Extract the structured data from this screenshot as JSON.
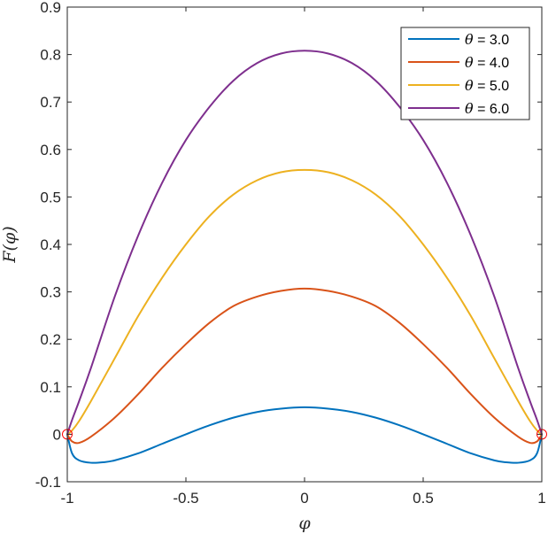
{
  "chart_data": {
    "type": "line",
    "xlabel": "φ",
    "ylabel": "F(φ)",
    "xlim": [
      -1,
      1
    ],
    "ylim": [
      -0.1,
      0.9
    ],
    "xticks": [
      -1,
      -0.5,
      0,
      0.5,
      1
    ],
    "xtick_labels": [
      "-1",
      "-0.5",
      "0",
      "0.5",
      "1"
    ],
    "yticks": [
      -0.1,
      0,
      0.1,
      0.2,
      0.3,
      0.4,
      0.5,
      0.6,
      0.7,
      0.8,
      0.9
    ],
    "ytick_labels": [
      "-0.1",
      "0",
      "0.1",
      "0.2",
      "0.3",
      "0.4",
      "0.5",
      "0.6",
      "0.7",
      "0.8",
      "0.9"
    ],
    "grid": false,
    "legend_position": "top-right",
    "series": [
      {
        "name": "θ = 3.0",
        "theta_symbol": "θ",
        "theta_value": "= 3.0",
        "color": "#0072BD",
        "x": [
          -1,
          -0.98,
          -0.95,
          -0.9,
          -0.85,
          -0.8,
          -0.7,
          -0.6,
          -0.5,
          -0.4,
          -0.3,
          -0.2,
          -0.1,
          0,
          0.1,
          0.2,
          0.3,
          0.4,
          0.5,
          0.6,
          0.7,
          0.8,
          0.85,
          0.9,
          0.95,
          0.98,
          1
        ],
        "y": [
          0,
          -0.04,
          -0.055,
          -0.06,
          -0.059,
          -0.055,
          -0.04,
          -0.02,
          0,
          0.019,
          0.035,
          0.047,
          0.054,
          0.057,
          0.054,
          0.047,
          0.035,
          0.019,
          0,
          -0.02,
          -0.04,
          -0.055,
          -0.059,
          -0.06,
          -0.055,
          -0.04,
          0
        ]
      },
      {
        "name": "θ = 4.0",
        "theta_symbol": "θ",
        "theta_value": "= 4.0",
        "color": "#D95319",
        "x": [
          -1,
          -0.98,
          -0.95,
          -0.9,
          -0.8,
          -0.7,
          -0.6,
          -0.5,
          -0.4,
          -0.3,
          -0.2,
          -0.1,
          0,
          0.1,
          0.2,
          0.3,
          0.4,
          0.5,
          0.6,
          0.7,
          0.8,
          0.9,
          0.95,
          0.98,
          1
        ],
        "y": [
          0,
          -0.015,
          -0.018,
          -0.005,
          0.035,
          0.085,
          0.14,
          0.19,
          0.235,
          0.27,
          0.29,
          0.302,
          0.307,
          0.302,
          0.29,
          0.27,
          0.235,
          0.19,
          0.14,
          0.085,
          0.035,
          -0.005,
          -0.018,
          -0.015,
          0
        ]
      },
      {
        "name": "θ = 5.0",
        "theta_symbol": "θ",
        "theta_value": "= 5.0",
        "color": "#EDB120",
        "x": [
          -1,
          -0.98,
          -0.95,
          -0.9,
          -0.8,
          -0.7,
          -0.6,
          -0.5,
          -0.4,
          -0.3,
          -0.2,
          -0.1,
          0,
          0.1,
          0.2,
          0.3,
          0.4,
          0.5,
          0.6,
          0.7,
          0.8,
          0.9,
          0.95,
          0.98,
          1
        ],
        "y": [
          0,
          0.008,
          0.028,
          0.07,
          0.16,
          0.25,
          0.33,
          0.4,
          0.46,
          0.505,
          0.535,
          0.552,
          0.557,
          0.552,
          0.535,
          0.505,
          0.46,
          0.4,
          0.33,
          0.25,
          0.16,
          0.07,
          0.028,
          0.008,
          0
        ]
      },
      {
        "name": "θ = 6.0",
        "theta_symbol": "θ",
        "theta_value": "= 6.0",
        "color": "#7E2F8E",
        "x": [
          -1,
          -0.98,
          -0.95,
          -0.9,
          -0.8,
          -0.7,
          -0.6,
          -0.5,
          -0.4,
          -0.3,
          -0.2,
          -0.1,
          0,
          0.1,
          0.2,
          0.3,
          0.4,
          0.5,
          0.6,
          0.7,
          0.8,
          0.9,
          0.95,
          0.98,
          1
        ],
        "y": [
          0,
          0.03,
          0.07,
          0.14,
          0.29,
          0.42,
          0.53,
          0.62,
          0.69,
          0.745,
          0.782,
          0.802,
          0.808,
          0.802,
          0.782,
          0.745,
          0.69,
          0.62,
          0.53,
          0.42,
          0.29,
          0.14,
          0.07,
          0.03,
          0
        ]
      }
    ],
    "markers": [
      {
        "x": -1,
        "y": 0,
        "shape": "circle",
        "color": "#FF0000"
      },
      {
        "x": 1,
        "y": 0,
        "shape": "circle",
        "color": "#FF0000"
      }
    ]
  }
}
